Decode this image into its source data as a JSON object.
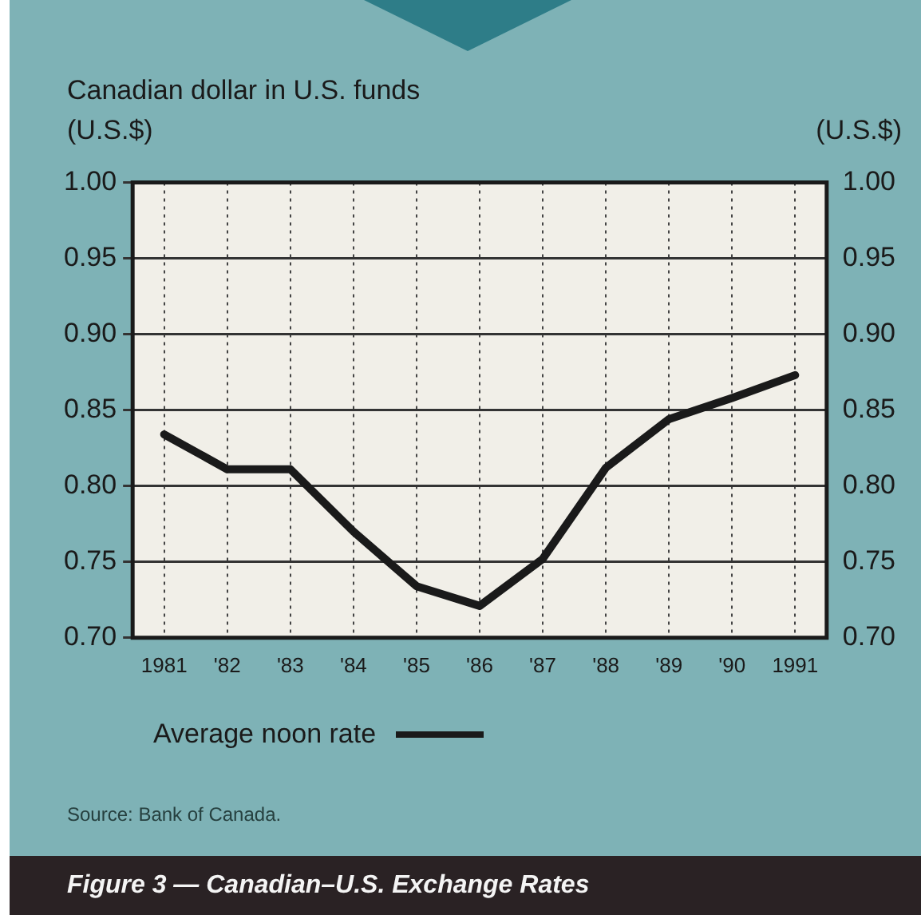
{
  "chart_data": {
    "type": "line",
    "title": "Figure 3 — Canadian–U.S. Exchange Rates",
    "subtitle": "Canadian dollar in U.S. funds",
    "ylabel": "(U.S.$)",
    "y2label": "(U.S.$)",
    "categories": [
      "1981",
      "'82",
      "'83",
      "'84",
      "'85",
      "'86",
      "'87",
      "'88",
      "'89",
      "'90",
      "1991"
    ],
    "series": [
      {
        "name": "Average noon rate",
        "color": "#1a1a1a",
        "values": [
          0.834,
          0.811,
          0.811,
          0.77,
          0.734,
          0.721,
          0.752,
          0.812,
          0.844,
          0.858,
          0.873
        ]
      }
    ],
    "ylim": [
      0.7,
      1.0
    ],
    "yticks": [
      {
        "value": 0.7,
        "label": "0.70"
      },
      {
        "value": 0.75,
        "label": "0.75"
      },
      {
        "value": 0.8,
        "label": "0.80"
      },
      {
        "value": 0.85,
        "label": "0.85"
      },
      {
        "value": 0.9,
        "label": "0.90"
      },
      {
        "value": 0.95,
        "label": "0.95"
      },
      {
        "value": 1.0,
        "label": "1.00"
      }
    ],
    "y2lim": [
      0.7,
      1.0
    ],
    "y2ticks": [
      {
        "value": 0.7,
        "label": "0.70"
      },
      {
        "value": 0.75,
        "label": "0.75"
      },
      {
        "value": 0.8,
        "label": "0.80"
      },
      {
        "value": 0.85,
        "label": "0.85"
      },
      {
        "value": 0.9,
        "label": "0.90"
      },
      {
        "value": 0.95,
        "label": "0.95"
      },
      {
        "value": 1.0,
        "label": "1.00"
      }
    ],
    "grid": true,
    "legend": "bottom",
    "marker": "none",
    "line_style": "solid",
    "annotations": [
      "Source: Bank of Canada."
    ]
  }
}
